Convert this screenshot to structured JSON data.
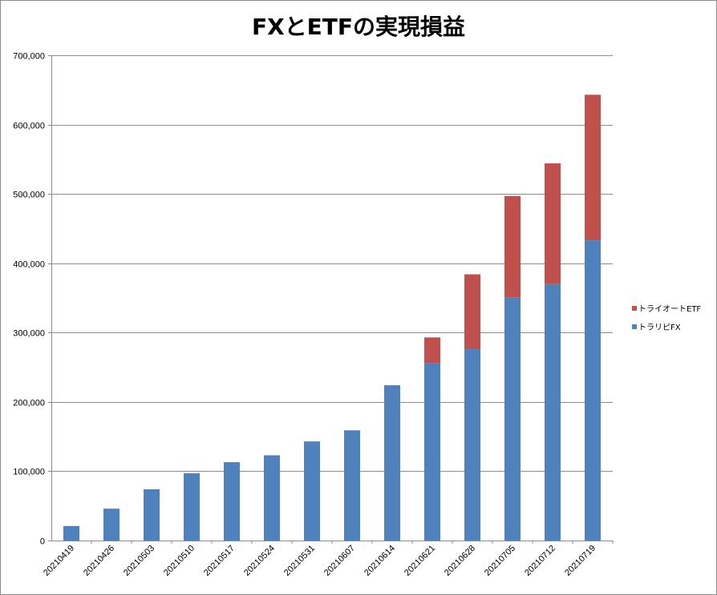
{
  "chart_data": {
    "type": "bar",
    "stacked": true,
    "title": "FXとETFの実現損益",
    "xlabel": "",
    "ylabel": "",
    "ylim": [
      0,
      700000
    ],
    "yticks": [
      0,
      100000,
      200000,
      300000,
      400000,
      500000,
      600000,
      700000
    ],
    "ytick_labels": [
      "0",
      "100,000",
      "200,000",
      "300,000",
      "400,000",
      "500,000",
      "600,000",
      "700,000"
    ],
    "grid": true,
    "legend": "right",
    "categories": [
      "20210419",
      "20210426",
      "20210503",
      "20210510",
      "20210517",
      "20210524",
      "20210531",
      "20210607",
      "20210614",
      "20210621",
      "20210628",
      "20210705",
      "20210712",
      "20210719"
    ],
    "series": [
      {
        "name": "トラリピFX",
        "color": "#4f81bd",
        "values": [
          21000,
          46000,
          74000,
          97000,
          113000,
          123000,
          143000,
          159000,
          224000,
          256000,
          276000,
          351000,
          370000,
          433000
        ]
      },
      {
        "name": "トライオートETF",
        "color": "#c0504d",
        "values": [
          0,
          0,
          0,
          0,
          0,
          0,
          0,
          0,
          0,
          37000,
          108000,
          146000,
          174000,
          210000
        ]
      }
    ]
  }
}
